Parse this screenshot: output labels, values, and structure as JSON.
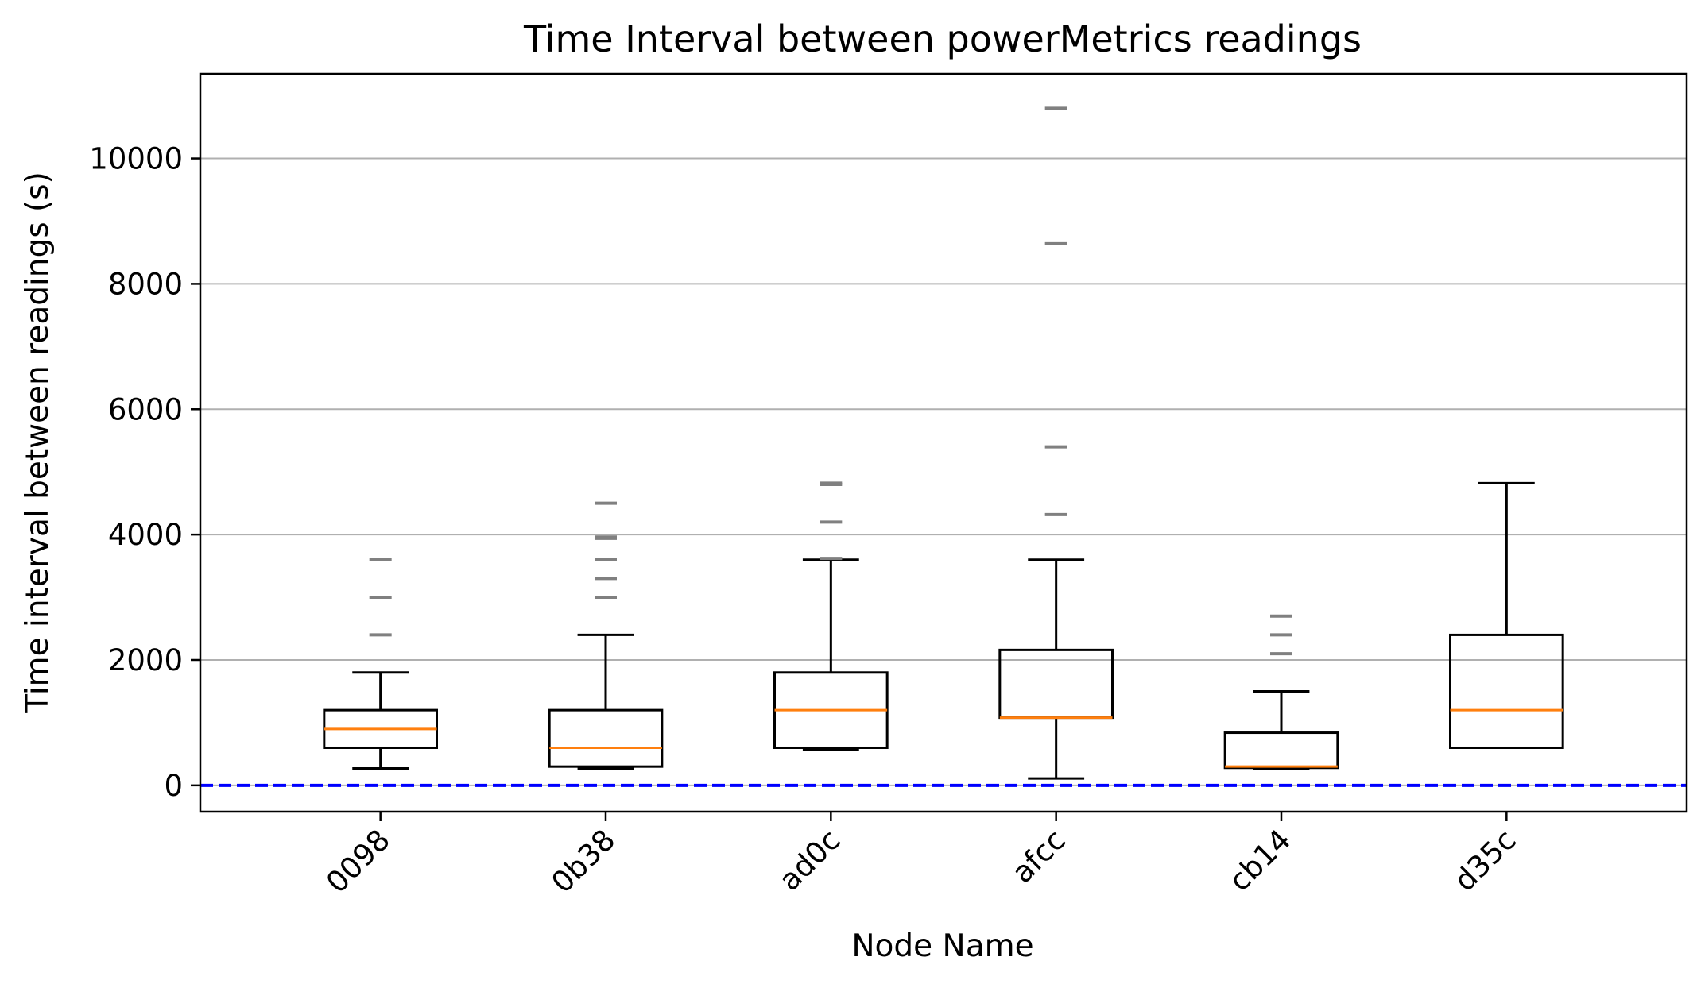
{
  "chart_data": {
    "type": "boxplot",
    "title": "Time Interval between powerMetrics readings",
    "xlabel": "Node Name",
    "ylabel": "Time interval between readings (s)",
    "ylim": [
      -420,
      11350
    ],
    "yticks": [
      0,
      2000,
      4000,
      6000,
      8000,
      10000
    ],
    "ytick_labels": [
      "0",
      "2000",
      "4000",
      "6000",
      "8000",
      "10000"
    ],
    "grid": "y",
    "reference_line": {
      "y": 0,
      "color": "#0000ff",
      "style": "dashed"
    },
    "categories": [
      "0098",
      "0b38",
      "ad0c",
      "afcc",
      "cb14",
      "d35c"
    ],
    "boxes": [
      {
        "name": "0098",
        "whislo": 270,
        "q1": 600,
        "med": 900,
        "q3": 1200,
        "whishi": 1800,
        "fliers": [
          2400,
          3000,
          3600
        ]
      },
      {
        "name": "0b38",
        "whislo": 270,
        "q1": 300,
        "med": 600,
        "q3": 1200,
        "whishi": 2400,
        "fliers": [
          3000,
          3300,
          3600,
          3940,
          3960,
          4500
        ]
      },
      {
        "name": "ad0c",
        "whislo": 570,
        "q1": 600,
        "med": 1200,
        "q3": 1800,
        "whishi": 3600,
        "fliers": [
          3620,
          4200,
          4800,
          4820
        ]
      },
      {
        "name": "afcc",
        "whislo": 110,
        "q1": 1080,
        "med": 1080,
        "q3": 2160,
        "whishi": 3600,
        "fliers": [
          4320,
          5400,
          8640,
          10800
        ]
      },
      {
        "name": "cb14",
        "whislo": 270,
        "q1": 280,
        "med": 300,
        "q3": 840,
        "whishi": 1500,
        "fliers": [
          2100,
          2400,
          2700
        ]
      },
      {
        "name": "d35c",
        "whislo": 600,
        "q1": 600,
        "med": 1200,
        "q3": 2400,
        "whishi": 4820,
        "fliers": []
      }
    ],
    "colors": {
      "box": "#000000",
      "median": "#ff7f0e",
      "flier": "#808080",
      "grid": "#b0b0b0"
    }
  }
}
